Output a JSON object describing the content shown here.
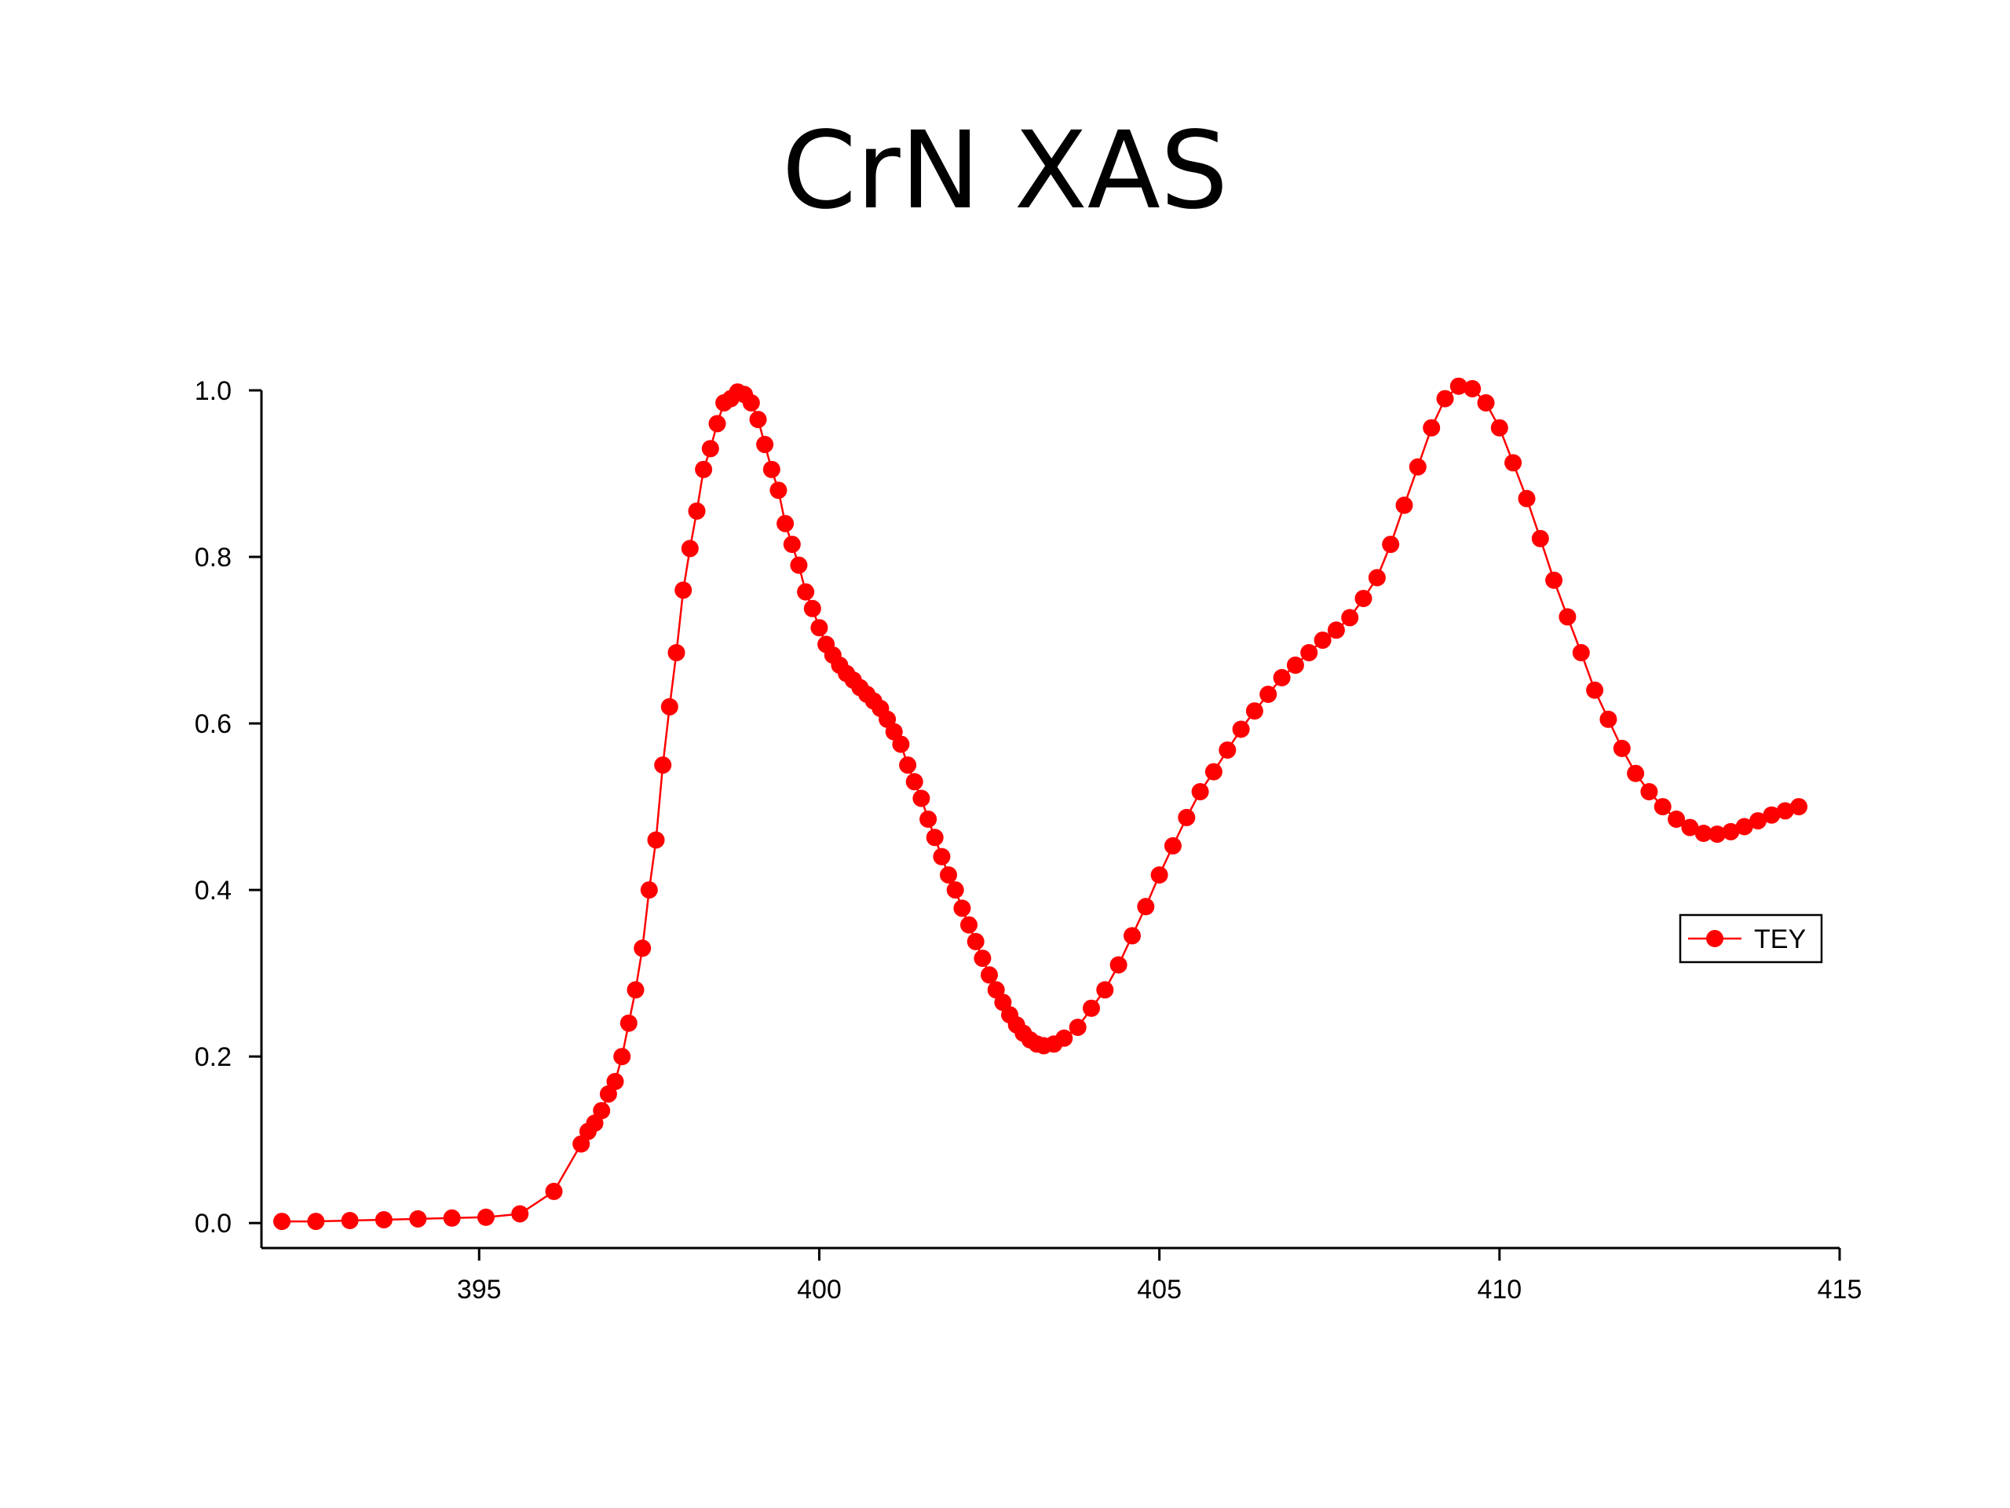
{
  "slide": {
    "title": "CrN XAS"
  },
  "chart_data": {
    "type": "line",
    "title": "",
    "xlabel": "",
    "ylabel": "",
    "xlim": [
      391.8,
      415
    ],
    "ylim": [
      -0.03,
      1.0
    ],
    "x_ticks": [
      395,
      400,
      405,
      410,
      415
    ],
    "y_ticks": [
      0.0,
      0.2,
      0.4,
      0.6,
      0.8,
      1.0
    ],
    "x_tick_labels": [
      "395",
      "400",
      "405",
      "410",
      "415"
    ],
    "y_tick_labels": [
      "0.0",
      "0.2",
      "0.4",
      "0.6",
      "0.8",
      "1.0"
    ],
    "grid": false,
    "legend": "right-middle",
    "series": [
      {
        "name": "TEY",
        "color": "#ff0000",
        "marker": "circle",
        "points": [
          [
            392.1,
            0.002
          ],
          [
            392.6,
            0.002
          ],
          [
            393.1,
            0.003
          ],
          [
            393.6,
            0.004
          ],
          [
            394.1,
            0.005
          ],
          [
            394.6,
            0.006
          ],
          [
            395.1,
            0.007
          ],
          [
            395.6,
            0.011
          ],
          [
            396.1,
            0.038
          ],
          [
            396.5,
            0.095
          ],
          [
            396.6,
            0.11
          ],
          [
            396.7,
            0.12
          ],
          [
            396.8,
            0.135
          ],
          [
            396.9,
            0.155
          ],
          [
            397.0,
            0.17
          ],
          [
            397.1,
            0.2
          ],
          [
            397.2,
            0.24
          ],
          [
            397.3,
            0.28
          ],
          [
            397.4,
            0.33
          ],
          [
            397.5,
            0.4
          ],
          [
            397.6,
            0.46
          ],
          [
            397.7,
            0.55
          ],
          [
            397.8,
            0.62
          ],
          [
            397.9,
            0.685
          ],
          [
            398.0,
            0.76
          ],
          [
            398.1,
            0.81
          ],
          [
            398.2,
            0.855
          ],
          [
            398.3,
            0.905
          ],
          [
            398.4,
            0.93
          ],
          [
            398.5,
            0.96
          ],
          [
            398.6,
            0.985
          ],
          [
            398.7,
            0.99
          ],
          [
            398.8,
            0.998
          ],
          [
            398.9,
            0.995
          ],
          [
            399.0,
            0.985
          ],
          [
            399.1,
            0.965
          ],
          [
            399.2,
            0.935
          ],
          [
            399.3,
            0.905
          ],
          [
            399.4,
            0.88
          ],
          [
            399.5,
            0.84
          ],
          [
            399.6,
            0.815
          ],
          [
            399.7,
            0.79
          ],
          [
            399.8,
            0.758
          ],
          [
            399.9,
            0.738
          ],
          [
            400.0,
            0.715
          ],
          [
            400.1,
            0.695
          ],
          [
            400.2,
            0.682
          ],
          [
            400.3,
            0.67
          ],
          [
            400.4,
            0.66
          ],
          [
            400.5,
            0.652
          ],
          [
            400.6,
            0.643
          ],
          [
            400.7,
            0.635
          ],
          [
            400.8,
            0.627
          ],
          [
            400.9,
            0.618
          ],
          [
            401.0,
            0.605
          ],
          [
            401.1,
            0.59
          ],
          [
            401.2,
            0.575
          ],
          [
            401.3,
            0.55
          ],
          [
            401.4,
            0.53
          ],
          [
            401.5,
            0.51
          ],
          [
            401.6,
            0.485
          ],
          [
            401.7,
            0.463
          ],
          [
            401.8,
            0.44
          ],
          [
            401.9,
            0.418
          ],
          [
            402.0,
            0.4
          ],
          [
            402.1,
            0.378
          ],
          [
            402.2,
            0.358
          ],
          [
            402.3,
            0.338
          ],
          [
            402.4,
            0.318
          ],
          [
            402.5,
            0.298
          ],
          [
            402.6,
            0.28
          ],
          [
            402.7,
            0.265
          ],
          [
            402.8,
            0.25
          ],
          [
            402.9,
            0.238
          ],
          [
            403.0,
            0.228
          ],
          [
            403.1,
            0.22
          ],
          [
            403.2,
            0.215
          ],
          [
            403.3,
            0.213
          ],
          [
            403.45,
            0.215
          ],
          [
            403.6,
            0.222
          ],
          [
            403.8,
            0.235
          ],
          [
            404.0,
            0.258
          ],
          [
            404.2,
            0.28
          ],
          [
            404.4,
            0.31
          ],
          [
            404.6,
            0.345
          ],
          [
            404.8,
            0.38
          ],
          [
            405.0,
            0.418
          ],
          [
            405.2,
            0.453
          ],
          [
            405.4,
            0.487
          ],
          [
            405.6,
            0.518
          ],
          [
            405.8,
            0.542
          ],
          [
            406.0,
            0.568
          ],
          [
            406.2,
            0.593
          ],
          [
            406.4,
            0.615
          ],
          [
            406.6,
            0.635
          ],
          [
            406.8,
            0.655
          ],
          [
            407.0,
            0.67
          ],
          [
            407.2,
            0.685
          ],
          [
            407.4,
            0.7
          ],
          [
            407.6,
            0.712
          ],
          [
            407.8,
            0.727
          ],
          [
            408.0,
            0.75
          ],
          [
            408.2,
            0.775
          ],
          [
            408.4,
            0.815
          ],
          [
            408.6,
            0.862
          ],
          [
            408.8,
            0.908
          ],
          [
            409.0,
            0.955
          ],
          [
            409.2,
            0.99
          ],
          [
            409.4,
            1.005
          ],
          [
            409.6,
            1.002
          ],
          [
            409.8,
            0.985
          ],
          [
            410.0,
            0.955
          ],
          [
            410.2,
            0.913
          ],
          [
            410.4,
            0.87
          ],
          [
            410.6,
            0.822
          ],
          [
            410.8,
            0.772
          ],
          [
            411.0,
            0.728
          ],
          [
            411.2,
            0.685
          ],
          [
            411.4,
            0.64
          ],
          [
            411.6,
            0.605
          ],
          [
            411.8,
            0.57
          ],
          [
            412.0,
            0.54
          ],
          [
            412.2,
            0.518
          ],
          [
            412.4,
            0.5
          ],
          [
            412.6,
            0.485
          ],
          [
            412.8,
            0.475
          ],
          [
            413.0,
            0.468
          ],
          [
            413.2,
            0.467
          ],
          [
            413.4,
            0.47
          ],
          [
            413.6,
            0.476
          ],
          [
            413.8,
            0.483
          ],
          [
            414.0,
            0.49
          ],
          [
            414.2,
            0.495
          ],
          [
            414.4,
            0.5
          ]
        ]
      }
    ]
  }
}
